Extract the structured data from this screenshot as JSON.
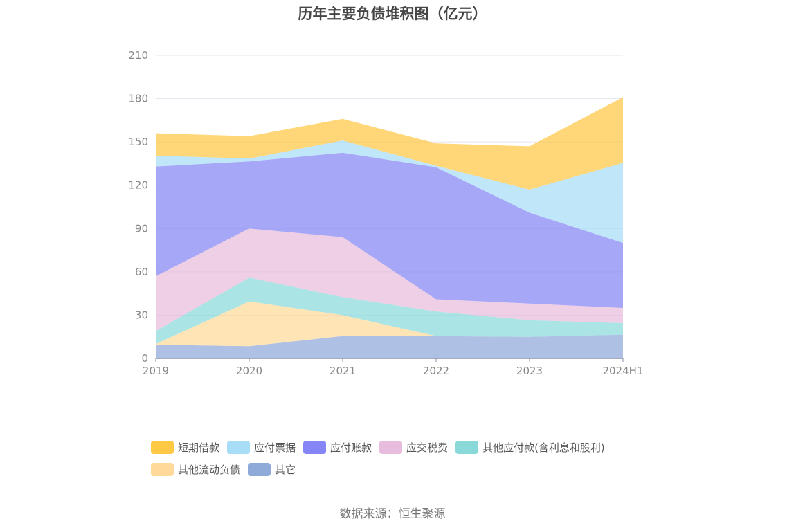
{
  "chart_data": {
    "type": "area",
    "stacked": true,
    "title": "历年主要负债堆积图（亿元）",
    "categories": [
      "2019",
      "2020",
      "2021",
      "2022",
      "2023",
      "2024H1"
    ],
    "y_ticks": [
      "0",
      "30",
      "60",
      "90",
      "120",
      "150",
      "180",
      "210"
    ],
    "ylim": [
      0,
      210
    ],
    "grid": true,
    "legend_position": "bottom",
    "series": [
      {
        "name": "其它",
        "color": "#8fa9d9",
        "values": [
          9.5,
          8.5,
          15.5,
          15.5,
          15,
          16.5
        ]
      },
      {
        "name": "其他流动负债",
        "color": "#ffd99a",
        "values": [
          0.5,
          31,
          14.5,
          0,
          0,
          0
        ]
      },
      {
        "name": "其他应付款(含利息和股利)",
        "color": "#8ad9d9",
        "values": [
          9,
          16.5,
          12.5,
          17,
          11.5,
          8
        ]
      },
      {
        "name": "应交税费",
        "color": "#e8bcdc",
        "values": [
          38,
          34,
          41.5,
          8.5,
          11.5,
          10.5
        ]
      },
      {
        "name": "应付账款",
        "color": "#8585f5",
        "values": [
          76,
          46.5,
          58.5,
          91.5,
          63,
          45
        ]
      },
      {
        "name": "应付票据",
        "color": "#a8ddf7",
        "values": [
          7.5,
          2,
          8.5,
          1,
          16,
          55.5
        ]
      },
      {
        "name": "短期借款",
        "color": "#ffc845",
        "values": [
          15.5,
          15.5,
          15,
          15.5,
          30,
          45.5
        ]
      }
    ]
  },
  "legend_order": [
    [
      {
        "name": "短期借款",
        "color": "#ffc845"
      },
      {
        "name": "应付票据",
        "color": "#a8ddf7"
      },
      {
        "name": "应付账款",
        "color": "#8585f5"
      },
      {
        "name": "应交税费",
        "color": "#e8bcdc"
      },
      {
        "name": "其他应付款(含利息和股利)",
        "color": "#8ad9d9"
      }
    ],
    [
      {
        "name": "其他流动负债",
        "color": "#ffd99a"
      },
      {
        "name": "其它",
        "color": "#8fa9d9"
      }
    ]
  ],
  "source": "数据来源：恒生聚源"
}
